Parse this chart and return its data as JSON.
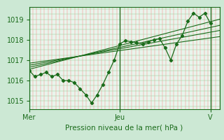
{
  "background_color": "#cce8d4",
  "plot_bg_color": "#e8f5ec",
  "line_color": "#1a6b1a",
  "xlabel": "Pression niveau de la mer( hPa )",
  "xtick_labels": [
    "Mer",
    "Jeu",
    "V"
  ],
  "xtick_positions": [
    0.0,
    0.5,
    1.0
  ],
  "ylim": [
    1014.6,
    1019.6
  ],
  "xlim": [
    0.0,
    1.05
  ],
  "ylabel_values": [
    1015,
    1016,
    1017,
    1018,
    1019
  ],
  "data_x": [
    0.0,
    0.031,
    0.063,
    0.094,
    0.125,
    0.156,
    0.188,
    0.219,
    0.25,
    0.281,
    0.313,
    0.344,
    0.375,
    0.406,
    0.438,
    0.469,
    0.5,
    0.531,
    0.563,
    0.594,
    0.625,
    0.656,
    0.688,
    0.719,
    0.75,
    0.781,
    0.813,
    0.844,
    0.875,
    0.906,
    0.938,
    0.969,
    1.0
  ],
  "data_y_main": [
    1016.5,
    1016.2,
    1016.3,
    1016.4,
    1016.2,
    1016.3,
    1016.0,
    1016.0,
    1015.9,
    1015.6,
    1015.3,
    1014.9,
    1015.3,
    1015.8,
    1016.4,
    1017.0,
    1017.8,
    1017.95,
    1017.9,
    1017.85,
    1017.8,
    1017.9,
    1018.0,
    1018.05,
    1017.6,
    1017.0,
    1017.8,
    1018.2,
    1018.9,
    1019.3,
    1019.1,
    1019.3,
    1018.8
  ],
  "trend1_x": [
    0.0,
    1.05
  ],
  "trend1_y": [
    1016.55,
    1019.0
  ],
  "trend2_x": [
    0.0,
    1.05
  ],
  "trend2_y": [
    1016.65,
    1018.7
  ],
  "trend3_x": [
    0.0,
    1.05
  ],
  "trend3_y": [
    1016.75,
    1018.45
  ],
  "trend4_x": [
    0.0,
    1.05
  ],
  "trend4_y": [
    1016.85,
    1018.15
  ],
  "vgrid_step": 0.021,
  "hgrid_step": 0.25
}
